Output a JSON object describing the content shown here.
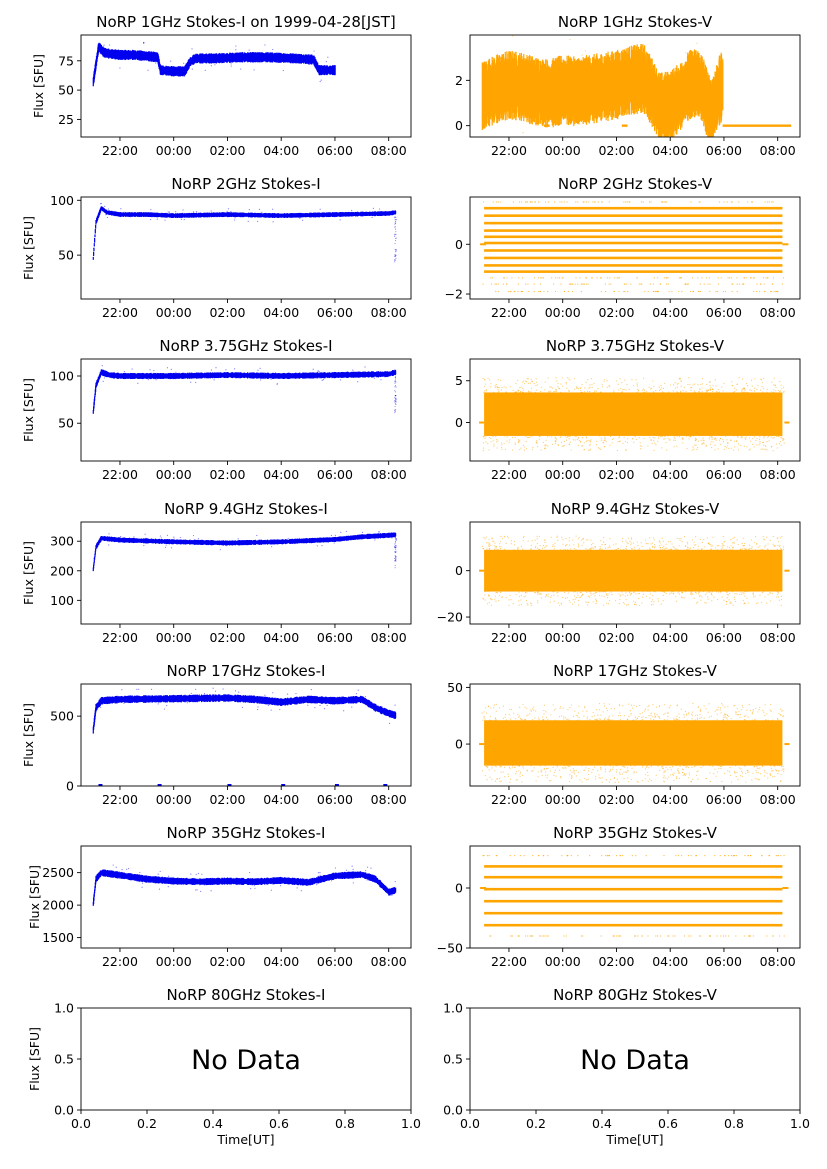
{
  "figure": {
    "xlabel": "Time[UT]",
    "time_ticks": [
      "22:00",
      "00:00",
      "02:00",
      "04:00",
      "06:00",
      "08:00"
    ],
    "frac_ticks": [
      "0.0",
      "0.2",
      "0.4",
      "0.6",
      "0.8",
      "1.0"
    ],
    "colors": {
      "stokes_i": "#0000ee",
      "stokes_v": "#ffa500",
      "axes": "#000000"
    }
  },
  "chart_data": [
    {
      "title": "NoRP 1GHz Stokes-I on 1999-04-28[JST]",
      "ylabel": "Flux [SFU]",
      "type": "scatter",
      "ylim": [
        10,
        97
      ],
      "yticks": [
        25,
        50,
        75
      ],
      "ytick_labels": [
        "25",
        "50",
        "75"
      ],
      "x": [
        21.0,
        21.1,
        21.2,
        21.4,
        21.6,
        22.0,
        22.5,
        23.0,
        23.4,
        23.5,
        24.0,
        24.4,
        24.6,
        24.8,
        25.5,
        26.5,
        27.5,
        28.5,
        29.2,
        29.4,
        29.8,
        30.0
      ],
      "y": [
        57,
        72,
        87,
        82,
        81,
        80,
        80,
        79,
        78,
        67,
        66,
        66,
        74,
        77,
        77,
        78,
        78,
        77,
        76,
        67,
        67,
        67
      ],
      "band": 4
    },
    {
      "title": "NoRP 1GHz Stokes-V",
      "type": "scatter",
      "ylim": [
        -0.5,
        4.0
      ],
      "yticks": [
        0,
        2
      ],
      "ytick_labels": [
        "0",
        "2"
      ],
      "x": [
        21.0,
        21.5,
        22.0,
        22.5,
        23.0,
        23.5,
        24.0,
        24.5,
        25.0,
        25.5,
        26.0,
        26.5,
        27.0,
        27.3,
        27.6,
        28.0,
        28.4,
        28.7,
        29.0,
        29.2,
        29.5,
        29.8,
        29.95
      ],
      "y": [
        1.3,
        1.6,
        1.8,
        1.7,
        1.5,
        1.4,
        1.6,
        1.5,
        1.6,
        1.7,
        1.8,
        2.0,
        2.1,
        1.5,
        0.8,
        0.9,
        1.3,
        1.8,
        1.9,
        1.6,
        0.5,
        1.5,
        1.8
      ],
      "band": 1.4,
      "flat": {
        "from": 29.95,
        "to": 32.5,
        "y": 0
      },
      "ticks": [
        23.3,
        23.4,
        26.2,
        26.3
      ]
    },
    {
      "title": "NoRP 2GHz Stokes-I",
      "ylabel": "Flux [SFU]",
      "type": "scatter",
      "ylim": [
        10,
        103
      ],
      "yticks": [
        50,
        100
      ],
      "ytick_labels": [
        "50",
        "100"
      ],
      "x": [
        21.0,
        21.1,
        21.3,
        21.5,
        22.0,
        23.0,
        24.0,
        26.0,
        28.0,
        30.0,
        32.0,
        32.25
      ],
      "y": [
        47,
        80,
        93,
        89,
        87,
        87,
        86,
        87,
        86,
        87,
        88,
        89
      ],
      "band": 2,
      "drop": {
        "x": 32.25,
        "y": 41
      }
    },
    {
      "title": "NoRP 2GHz Stokes-V",
      "type": "levels",
      "ylim": [
        -2.2,
        1.9
      ],
      "yticks": [
        -2,
        0
      ],
      "ytick_labels": [
        "−2",
        "0"
      ],
      "levels": [
        1.45,
        1.15,
        0.85,
        0.55,
        0.3,
        0.05,
        -0.25,
        -0.55,
        -0.85,
        -1.1
      ],
      "x_start": 21.0,
      "x_end": 32.25,
      "zero_y": 0,
      "sparse": [
        1.7,
        -1.35,
        -1.6,
        -1.9
      ]
    },
    {
      "title": "NoRP 3.75GHz Stokes-I",
      "ylabel": "Flux [SFU]",
      "type": "scatter",
      "ylim": [
        10,
        118
      ],
      "yticks": [
        50,
        100
      ],
      "ytick_labels": [
        "50",
        "100"
      ],
      "x": [
        21.0,
        21.1,
        21.3,
        21.6,
        22.0,
        24.0,
        26.0,
        28.0,
        30.0,
        32.0,
        32.25
      ],
      "y": [
        62,
        90,
        104,
        101,
        100,
        100,
        101,
        100,
        101,
        102,
        104
      ],
      "band": 3,
      "drop": {
        "x": 32.25,
        "y": 60
      }
    },
    {
      "title": "NoRP 3.75GHz Stokes-V",
      "type": "noise",
      "ylim": [
        -4.6,
        7.6
      ],
      "yticks": [
        0,
        5
      ],
      "ytick_labels": [
        "0",
        "5"
      ],
      "x_start": 21.0,
      "x_end": 32.25,
      "center": 1.0,
      "core": 2.6,
      "spread": 4.4
    },
    {
      "title": "NoRP 9.4GHz Stokes-I",
      "ylabel": "Flux [SFU]",
      "type": "scatter",
      "ylim": [
        20,
        365
      ],
      "yticks": [
        100,
        200,
        300
      ],
      "ytick_labels": [
        "100",
        "200",
        "300"
      ],
      "x": [
        21.0,
        21.1,
        21.3,
        22.0,
        24.0,
        26.0,
        28.0,
        30.0,
        31.0,
        32.0,
        32.25
      ],
      "y": [
        205,
        280,
        310,
        304,
        298,
        294,
        298,
        306,
        315,
        320,
        322
      ],
      "band": 8,
      "drop": {
        "x": 32.25,
        "y": 210
      }
    },
    {
      "title": "NoRP 9.4GHz Stokes-V",
      "type": "noise",
      "ylim": [
        -23,
        21
      ],
      "yticks": [
        -20,
        0
      ],
      "ytick_labels": [
        "−20",
        "0"
      ],
      "x_start": 21.0,
      "x_end": 32.25,
      "center": 0,
      "core": 9,
      "spread": 15
    },
    {
      "title": "NoRP 17GHz Stokes-I",
      "ylabel": "Flux [SFU]",
      "type": "scatter",
      "ylim": [
        0,
        730
      ],
      "yticks": [
        0,
        500
      ],
      "ytick_labels": [
        "0",
        "500"
      ],
      "x": [
        21.0,
        21.1,
        21.3,
        22.0,
        24.0,
        26.0,
        27.0,
        28.0,
        29.0,
        30.0,
        31.0,
        31.5,
        32.0,
        32.25
      ],
      "y": [
        400,
        560,
        610,
        620,
        625,
        630,
        620,
        600,
        620,
        610,
        620,
        560,
        520,
        505
      ],
      "band": 25,
      "zeros": [
        21.2,
        23.4,
        26.0,
        28.0,
        30.0,
        31.8
      ]
    },
    {
      "title": "NoRP 17GHz Stokes-V",
      "type": "noise",
      "ylim": [
        -37,
        53
      ],
      "yticks": [
        0,
        50
      ],
      "ytick_labels": [
        "0",
        "50"
      ],
      "x_start": 21.0,
      "x_end": 32.25,
      "center": 1,
      "core": 20,
      "spread": 35
    },
    {
      "title": "NoRP 35GHz Stokes-I",
      "ylabel": "Flux [SFU]",
      "type": "scatter",
      "ylim": [
        1340,
        2910
      ],
      "yticks": [
        1500,
        2000,
        2500
      ],
      "ytick_labels": [
        "1500",
        "2000",
        "2500"
      ],
      "x": [
        21.0,
        21.1,
        21.3,
        22.0,
        23.0,
        24.0,
        25.0,
        26.0,
        27.0,
        28.0,
        29.0,
        30.0,
        31.0,
        31.5,
        32.0,
        32.25
      ],
      "y": [
        2020,
        2400,
        2500,
        2460,
        2400,
        2370,
        2360,
        2370,
        2360,
        2380,
        2350,
        2450,
        2470,
        2400,
        2200,
        2230
      ],
      "band": 50
    },
    {
      "title": "NoRP 35GHz Stokes-V",
      "type": "levels",
      "ylim": [
        -50,
        35
      ],
      "yticks": [
        -50,
        0
      ],
      "ytick_labels": [
        "−50",
        "0"
      ],
      "levels": [
        18,
        9,
        -1,
        -11,
        -21,
        -31
      ],
      "x_start": 21.0,
      "x_end": 32.25,
      "zero_y": 0,
      "sparse": [
        27,
        -40
      ]
    },
    {
      "title": "NoRP 80GHz Stokes-I",
      "ylabel": "Flux [SFU]",
      "type": "empty",
      "ylim": [
        0,
        1
      ],
      "yticks": [
        0,
        0.5,
        1.0
      ],
      "ytick_labels": [
        "0.0",
        "0.5",
        "1.0"
      ],
      "message": "No Data"
    },
    {
      "title": "NoRP 80GHz Stokes-V",
      "type": "empty",
      "ylim": [
        0,
        1
      ],
      "yticks": [
        0,
        0.5,
        1.0
      ],
      "ytick_labels": [
        "0.0",
        "0.5",
        "1.0"
      ],
      "message": "No Data"
    }
  ]
}
